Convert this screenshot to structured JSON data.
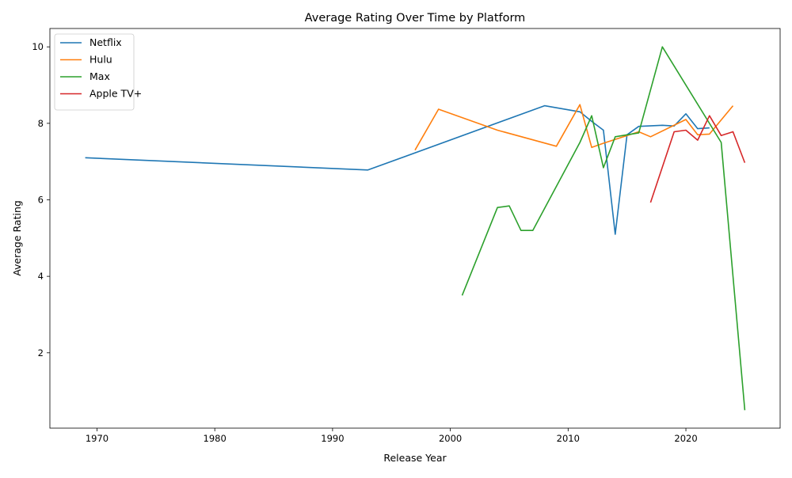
{
  "chart_data": {
    "type": "line",
    "title": "Average Rating Over Time by Platform",
    "xlabel": "Release Year",
    "ylabel": "Average Rating",
    "xlim": [
      1966,
      2028
    ],
    "ylim": [
      0.03,
      10.48
    ],
    "x_ticks": [
      1970,
      1980,
      1990,
      2000,
      2010,
      2020
    ],
    "y_ticks": [
      2,
      4,
      6,
      8,
      10
    ],
    "grid": false,
    "legend_position": "top-left",
    "series": [
      {
        "name": "Netflix",
        "color": "#1f77b4",
        "points": [
          [
            1969,
            7.1
          ],
          [
            1993,
            6.78
          ],
          [
            2008,
            8.46
          ],
          [
            2011,
            8.3
          ],
          [
            2012,
            8.05
          ],
          [
            2013,
            7.82
          ],
          [
            2014,
            5.1
          ],
          [
            2015,
            7.7
          ],
          [
            2016,
            7.92
          ],
          [
            2018,
            7.95
          ],
          [
            2019,
            7.93
          ],
          [
            2020,
            8.25
          ],
          [
            2021,
            7.86
          ],
          [
            2022,
            7.88
          ]
        ]
      },
      {
        "name": "Hulu",
        "color": "#ff7f0e",
        "points": [
          [
            1997,
            7.3
          ],
          [
            1999,
            8.37
          ],
          [
            2004,
            7.82
          ],
          [
            2009,
            7.4
          ],
          [
            2011,
            8.49
          ],
          [
            2012,
            7.37
          ],
          [
            2013,
            7.48
          ],
          [
            2016,
            7.78
          ],
          [
            2017,
            7.65
          ],
          [
            2020,
            8.1
          ],
          [
            2021,
            7.7
          ],
          [
            2022,
            7.72
          ],
          [
            2024,
            8.46
          ]
        ]
      },
      {
        "name": "Max",
        "color": "#2ca02c",
        "points": [
          [
            2001,
            3.5
          ],
          [
            2004,
            5.8
          ],
          [
            2005,
            5.84
          ],
          [
            2006,
            5.2
          ],
          [
            2007,
            5.2
          ],
          [
            2011,
            7.5
          ],
          [
            2012,
            8.2
          ],
          [
            2013,
            6.84
          ],
          [
            2014,
            7.65
          ],
          [
            2016,
            7.75
          ],
          [
            2018,
            10.0
          ],
          [
            2023,
            7.5
          ],
          [
            2025,
            0.5
          ]
        ]
      },
      {
        "name": "Apple TV+",
        "color": "#d62728",
        "points": [
          [
            2017,
            5.93
          ],
          [
            2019,
            7.78
          ],
          [
            2020,
            7.82
          ],
          [
            2021,
            7.56
          ],
          [
            2022,
            8.2
          ],
          [
            2023,
            7.68
          ],
          [
            2024,
            7.78
          ],
          [
            2025,
            6.97
          ]
        ]
      }
    ]
  }
}
